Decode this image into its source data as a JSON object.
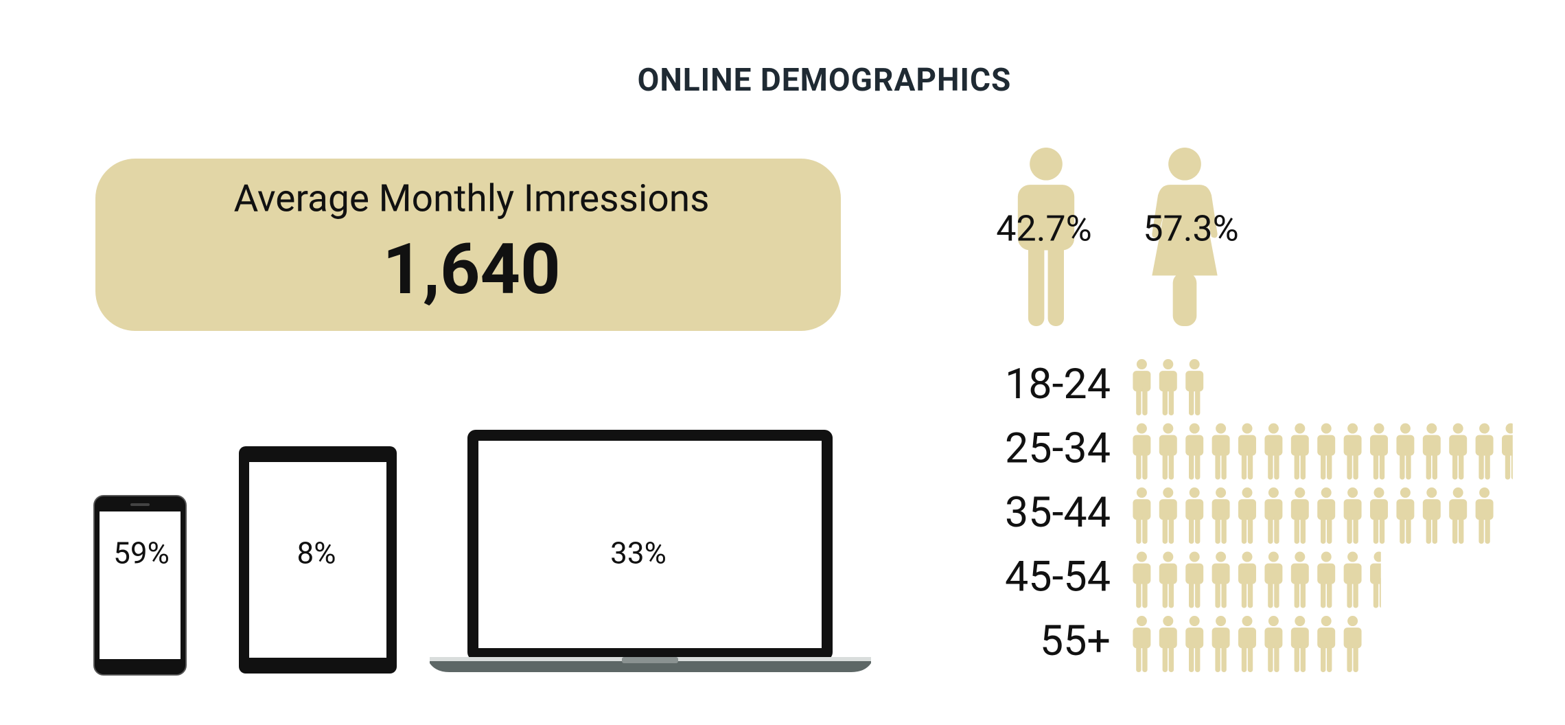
{
  "title": "ONLINE DEMOGRAPHICS",
  "impressions": {
    "label": "Average Monthly Imressions",
    "value": "1,640"
  },
  "devices": {
    "phone": "59%",
    "tablet": "8%",
    "laptop": "33%"
  },
  "gender": {
    "male": "42.7%",
    "female": "57.3%"
  },
  "chart_data": {
    "type": "pictograph",
    "categories": [
      "18-24",
      "25-34",
      "35-44",
      "45-54",
      "55+"
    ],
    "values": [
      3,
      14.5,
      14,
      9.5,
      9
    ],
    "color": "#e3d7a7"
  }
}
